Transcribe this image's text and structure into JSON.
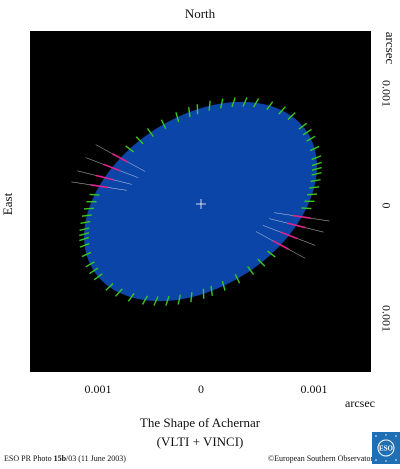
{
  "chart_data": {
    "type": "scatter",
    "title": "The Shape of Achernar",
    "subtitle": "(VLTI + VINCI)",
    "directions": {
      "top": "North",
      "left": "East"
    },
    "axis_unit_label": "arcsec",
    "x_ticks": [
      {
        "value": -0.001,
        "label": "0.001"
      },
      {
        "value": 0,
        "label": "0"
      },
      {
        "value": 0.001,
        "label": "0.001"
      }
    ],
    "y_ticks": [
      {
        "value": 0.001,
        "label": "0.001"
      },
      {
        "value": 0,
        "label": "0"
      },
      {
        "value": -0.001,
        "label": "0.001"
      }
    ],
    "xlim": [
      -0.0015,
      0.0015
    ],
    "ylim": [
      -0.0015,
      0.0015
    ],
    "ellipse": {
      "center": [
        0,
        0
      ],
      "semi_major": 0.00112,
      "semi_minor": 0.00075,
      "angle_deg": 33,
      "color": "#0b45a8"
    },
    "measurement_angles_deg": [
      -5,
      0,
      5,
      12,
      18,
      22,
      25,
      28,
      32,
      36,
      40,
      44,
      48,
      53,
      58,
      64,
      70,
      76,
      82,
      88,
      95,
      102,
      108,
      112,
      118,
      124,
      130,
      136,
      142,
      150,
      158,
      165,
      175,
      180,
      185,
      192,
      198,
      202,
      205,
      208,
      212,
      216,
      220,
      224,
      228,
      233,
      238,
      244,
      250,
      256,
      262,
      268,
      275,
      282,
      288,
      292,
      298,
      304,
      310,
      316,
      322,
      330,
      338,
      345
    ],
    "center_marker": "+",
    "colors": {
      "background": "#000000",
      "measurement_points": "#39c81f",
      "error_lines": "#e8e8e8",
      "magenta_points": "#e0228e"
    }
  },
  "footer": {
    "left_prefix": "ESO PR Photo ",
    "left_bold": "15b",
    "left_suffix": "/03 (11 June 2003)",
    "right": "©European Southern Observatory"
  },
  "logo_text": "ESO"
}
